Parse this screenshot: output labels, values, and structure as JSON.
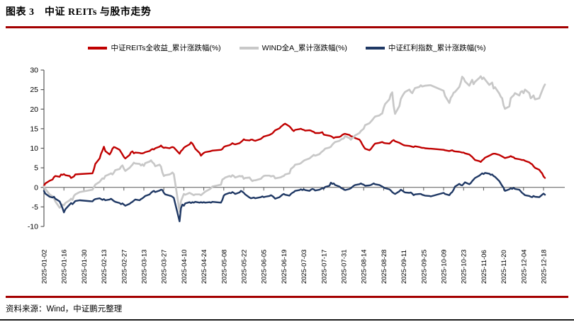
{
  "page": {
    "title": "图表 3　中证 REITs 与股市走势",
    "source_note": "资料来源：Wind，中证鹏元整理",
    "accent_color": "#A40000",
    "axis_color": "#595959"
  },
  "chart_data": {
    "type": "line",
    "title": "中证 REITs 与股市走势",
    "ylabel": "累计涨跌幅(%)",
    "ylim": [
      -10,
      30
    ],
    "yticks": [
      30,
      25,
      20,
      15,
      10,
      5,
      0,
      -5,
      -10
    ],
    "grid": false,
    "legend_position": "top",
    "xtick_labels": [
      "2025-01-02",
      "2025-01-16",
      "2025-01-30",
      "2025-02-13",
      "2025-02-27",
      "2025-03-13",
      "2025-03-27",
      "2025-04-10",
      "2025-04-24",
      "2025-05-08",
      "2025-05-22",
      "2025-06-05",
      "2025-06-19",
      "2025-07-03",
      "2025-07-17",
      "2025-07-31",
      "2025-08-14",
      "2025-08-28",
      "2025-09-11",
      "2025-09-25",
      "2025-10-09",
      "2025-10-23",
      "2025-11-06",
      "2025-11-20",
      "2025-12-04",
      "2025-12-18"
    ],
    "x": [
      "2025-01-02",
      "2025-01-03",
      "2025-01-06",
      "2025-01-08",
      "2025-01-09",
      "2025-01-10",
      "2025-01-13",
      "2025-01-14",
      "2025-01-15",
      "2025-01-16",
      "2025-01-17",
      "2025-01-20",
      "2025-01-21",
      "2025-01-22",
      "2025-01-23",
      "2025-01-24",
      "2025-01-27",
      "2025-02-05",
      "2025-02-06",
      "2025-02-07",
      "2025-02-10",
      "2025-02-11",
      "2025-02-12",
      "2025-02-13",
      "2025-02-14",
      "2025-02-17",
      "2025-02-18",
      "2025-02-19",
      "2025-02-20",
      "2025-02-21",
      "2025-02-24",
      "2025-02-25",
      "2025-02-26",
      "2025-02-27",
      "2025-02-28",
      "2025-03-03",
      "2025-03-04",
      "2025-03-05",
      "2025-03-06",
      "2025-03-07",
      "2025-03-10",
      "2025-03-11",
      "2025-03-12",
      "2025-03-13",
      "2025-03-14",
      "2025-03-17",
      "2025-03-18",
      "2025-03-19",
      "2025-03-20",
      "2025-03-21",
      "2025-03-24",
      "2025-03-25",
      "2025-03-26",
      "2025-03-27",
      "2025-03-28",
      "2025-03-31",
      "2025-04-01",
      "2025-04-02",
      "2025-04-03",
      "2025-04-07",
      "2025-04-08",
      "2025-04-09",
      "2025-04-10",
      "2025-04-11",
      "2025-04-14",
      "2025-04-15",
      "2025-04-16",
      "2025-04-17",
      "2025-04-18",
      "2025-04-21",
      "2025-04-22",
      "2025-04-23",
      "2025-04-24",
      "2025-04-25",
      "2025-04-28",
      "2025-04-29",
      "2025-04-30",
      "2025-05-06",
      "2025-05-07",
      "2025-05-08",
      "2025-05-09",
      "2025-05-12",
      "2025-05-13",
      "2025-05-14",
      "2025-05-15",
      "2025-05-16",
      "2025-05-19",
      "2025-05-20",
      "2025-05-21",
      "2025-05-22",
      "2025-05-23",
      "2025-05-26",
      "2025-05-27",
      "2025-05-28",
      "2025-05-29",
      "2025-05-30",
      "2025-06-03",
      "2025-06-04",
      "2025-06-05",
      "2025-06-06",
      "2025-06-09",
      "2025-06-10",
      "2025-06-11",
      "2025-06-12",
      "2025-06-13",
      "2025-06-16",
      "2025-06-17",
      "2025-06-18",
      "2025-06-19",
      "2025-06-20",
      "2025-06-23",
      "2025-06-24",
      "2025-06-25",
      "2025-06-26",
      "2025-06-27",
      "2025-06-30",
      "2025-07-01",
      "2025-07-02",
      "2025-07-03",
      "2025-07-04",
      "2025-07-07",
      "2025-07-08",
      "2025-07-09",
      "2025-07-10",
      "2025-07-11",
      "2025-07-14",
      "2025-07-15",
      "2025-07-16",
      "2025-07-17",
      "2025-07-18",
      "2025-07-21",
      "2025-07-22",
      "2025-07-23",
      "2025-07-24",
      "2025-07-25",
      "2025-07-28",
      "2025-07-29",
      "2025-07-30",
      "2025-07-31",
      "2025-08-01",
      "2025-08-04",
      "2025-08-05",
      "2025-08-06",
      "2025-08-07",
      "2025-08-08",
      "2025-08-11",
      "2025-08-12",
      "2025-08-13",
      "2025-08-14",
      "2025-08-15",
      "2025-08-18",
      "2025-08-19",
      "2025-08-20",
      "2025-08-21",
      "2025-08-22",
      "2025-08-25",
      "2025-08-26",
      "2025-08-27",
      "2025-08-28",
      "2025-08-29",
      "2025-09-01",
      "2025-09-02",
      "2025-09-03",
      "2025-09-04",
      "2025-09-05",
      "2025-09-08",
      "2025-09-09",
      "2025-09-10",
      "2025-09-11",
      "2025-09-12",
      "2025-09-15",
      "2025-09-16",
      "2025-09-17",
      "2025-09-18",
      "2025-09-19",
      "2025-09-22",
      "2025-09-23",
      "2025-09-24",
      "2025-09-25",
      "2025-09-26",
      "2025-09-29",
      "2025-09-30",
      "2025-10-09",
      "2025-10-10",
      "2025-10-13",
      "2025-10-14",
      "2025-10-15",
      "2025-10-16",
      "2025-10-17",
      "2025-10-20",
      "2025-10-21",
      "2025-10-22",
      "2025-10-23",
      "2025-10-24",
      "2025-10-27",
      "2025-10-28",
      "2025-10-29",
      "2025-10-30",
      "2025-10-31",
      "2025-11-03",
      "2025-11-04",
      "2025-11-05",
      "2025-11-06",
      "2025-11-07",
      "2025-11-10",
      "2025-11-11",
      "2025-11-12",
      "2025-11-13",
      "2025-11-14",
      "2025-11-17",
      "2025-11-18",
      "2025-11-19",
      "2025-11-20",
      "2025-11-21",
      "2025-11-24",
      "2025-11-25",
      "2025-11-26",
      "2025-11-27",
      "2025-11-28",
      "2025-12-01",
      "2025-12-02",
      "2025-12-03",
      "2025-12-04",
      "2025-12-05",
      "2025-12-08",
      "2025-12-09",
      "2025-12-10",
      "2025-12-11",
      "2025-12-12",
      "2025-12-15",
      "2025-12-16",
      "2025-12-17",
      "2025-12-18",
      "2025-12-19"
    ],
    "series": [
      {
        "name": "中证REITs全收益_累计涨跌幅(%)",
        "color": "#C00000",
        "width": 2.4,
        "values": [
          0.4,
          1.0,
          1.7,
          2.0,
          2.6,
          2.9,
          2.7,
          3.3,
          3.2,
          3.4,
          3.1,
          2.9,
          2.4,
          2.6,
          2.8,
          3.3,
          3.4,
          3.6,
          4.6,
          6.0,
          7.4,
          8.6,
          9.4,
          10.4,
          9.3,
          8.4,
          9.0,
          9.9,
          10.3,
          10.2,
          9.6,
          9.0,
          8.4,
          7.8,
          7.4,
          8.3,
          9.0,
          9.2,
          8.7,
          8.9,
          8.8,
          8.7,
          8.7,
          8.8,
          9.0,
          9.3,
          9.6,
          9.8,
          9.7,
          10.0,
          10.4,
          10.7,
          10.3,
          10.1,
          10.2,
          10.0,
          10.2,
          10.3,
          10.2,
          8.6,
          9.3,
          9.6,
          10.1,
          10.4,
          11.0,
          11.5,
          11.2,
          10.6,
          9.9,
          8.8,
          8.1,
          8.5,
          8.8,
          9.0,
          9.2,
          9.3,
          9.4,
          9.6,
          9.8,
          10.3,
          10.5,
          10.8,
          11.0,
          11.3,
          11.1,
          11.0,
          11.3,
          11.6,
          11.9,
          12.3,
          12.1,
          12.0,
          12.2,
          12.2,
          12.0,
          11.9,
          12.4,
          12.7,
          13.0,
          13.1,
          13.4,
          13.6,
          13.8,
          14.2,
          14.6,
          15.1,
          15.5,
          15.8,
          16.1,
          16.3,
          15.6,
          15.2,
          14.7,
          14.4,
          14.7,
          14.9,
          15.0,
          14.8,
          14.7,
          14.5,
          14.6,
          14.5,
          14.3,
          14.2,
          13.9,
          13.9,
          14.0,
          14.1,
          13.5,
          13.4,
          13.2,
          13.1,
          12.9,
          12.6,
          12.8,
          12.9,
          13.1,
          13.4,
          13.6,
          13.7,
          13.4,
          13.1,
          13.0,
          12.9,
          12.6,
          12.2,
          11.7,
          11.0,
          10.4,
          9.9,
          9.5,
          9.8,
          10.3,
          10.8,
          11.2,
          11.4,
          11.5,
          11.6,
          11.4,
          11.3,
          11.2,
          11.5,
          11.9,
          12.1,
          11.8,
          11.4,
          11.2,
          11.0,
          10.8,
          10.7,
          10.6,
          10.5,
          10.4,
          10.3,
          10.5,
          10.3,
          10.2,
          10.1,
          10.1,
          10.0,
          9.9,
          9.9,
          9.6,
          9.5,
          9.3,
          9.4,
          9.5,
          9.3,
          9.2,
          9.1,
          9.0,
          8.9,
          8.9,
          8.7,
          8.4,
          8.1,
          7.8,
          7.4,
          7.0,
          6.7,
          6.5,
          6.9,
          7.2,
          7.6,
          8.1,
          8.3,
          8.5,
          8.6,
          8.6,
          8.3,
          8.1,
          7.9,
          7.7,
          7.5,
          7.8,
          8.0,
          7.8,
          7.7,
          7.4,
          7.2,
          7.1,
          7.0,
          7.0,
          6.8,
          6.4,
          6.1,
          5.9,
          5.4,
          5.0,
          4.5,
          4.0,
          3.6,
          2.8,
          2.4
        ]
      },
      {
        "name": "WIND全A_累计涨跌幅(%)",
        "color": "#C8C8C8",
        "width": 2.7,
        "values": [
          0.2,
          -0.4,
          -1.8,
          -2.3,
          -2.8,
          -3.6,
          -5.2,
          -4.9,
          -4.4,
          -4.6,
          -4.0,
          -3.3,
          -2.9,
          -3.2,
          -2.2,
          -1.8,
          -1.2,
          -0.6,
          0.1,
          0.7,
          1.4,
          1.9,
          2.3,
          2.2,
          2.9,
          3.4,
          3.6,
          3.3,
          3.8,
          4.4,
          4.7,
          5.3,
          5.6,
          4.8,
          4.2,
          5.0,
          5.4,
          5.8,
          6.3,
          6.1,
          6.0,
          5.6,
          5.9,
          5.5,
          6.2,
          6.6,
          6.9,
          6.4,
          6.1,
          5.4,
          5.8,
          5.3,
          3.8,
          2.9,
          3.1,
          3.3,
          3.5,
          3.8,
          3.4,
          -6.2,
          -3.5,
          -2.6,
          -1.7,
          -1.9,
          -1.4,
          -1.6,
          -1.8,
          -2.0,
          -1.8,
          -1.8,
          -2.0,
          -1.7,
          -1.4,
          -1.1,
          -0.5,
          -0.2,
          0.2,
          0.7,
          2.0,
          2.2,
          2.5,
          2.9,
          2.7,
          3.1,
          2.9,
          2.5,
          2.9,
          2.8,
          2.9,
          2.2,
          2.4,
          2.5,
          2.0,
          1.6,
          1.8,
          1.8,
          2.2,
          2.6,
          2.9,
          3.0,
          3.0,
          2.8,
          2.9,
          2.9,
          2.3,
          2.5,
          2.6,
          2.8,
          2.9,
          3.3,
          3.6,
          4.7,
          5.0,
          5.3,
          5.8,
          6.0,
          6.2,
          6.5,
          6.8,
          7.0,
          7.4,
          7.7,
          8.0,
          8.3,
          8.1,
          8.5,
          8.9,
          9.2,
          9.5,
          9.9,
          10.2,
          10.4,
          10.9,
          11.3,
          11.6,
          11.9,
          12.2,
          12.4,
          12.5,
          13.1,
          12.6,
          12.2,
          12.6,
          12.9,
          13.3,
          13.9,
          14.4,
          14.7,
          15.0,
          15.9,
          16.4,
          16.8,
          17.2,
          17.7,
          18.1,
          18.4,
          18.7,
          18.9,
          20.3,
          21.3,
          22.5,
          23.8,
          24.3,
          20.8,
          18.8,
          20.8,
          22.6,
          23.3,
          23.9,
          24.4,
          25.0,
          24.4,
          24.1,
          24.8,
          25.4,
          25.7,
          26.1,
          25.8,
          25.9,
          26.0,
          26.1,
          26.1,
          24.7,
          23.4,
          21.6,
          22.9,
          23.4,
          24.2,
          24.4,
          25.7,
          26.8,
          28.3,
          27.9,
          27.1,
          26.0,
          26.8,
          27.5,
          26.4,
          27.0,
          28.0,
          28.4,
          27.7,
          28.1,
          27.6,
          26.2,
          26.5,
          26.8,
          25.3,
          25.6,
          24.0,
          23.2,
          22.8,
          21.0,
          20.1,
          20.7,
          22.8,
          23.2,
          23.5,
          24.1,
          23.5,
          24.4,
          24.6,
          24.1,
          25.0,
          24.1,
          22.8,
          23.1,
          23.5,
          22.5,
          22.8,
          23.8,
          24.7,
          25.6,
          26.3
        ]
      },
      {
        "name": "中证红利指数_累计涨跌幅(%)",
        "color": "#1F3864",
        "width": 2.4,
        "values": [
          -0.9,
          -1.6,
          -2.4,
          -2.6,
          -2.4,
          -2.9,
          -3.6,
          -4.4,
          -5.3,
          -6.4,
          -5.6,
          -4.4,
          -4.0,
          -4.3,
          -3.9,
          -3.5,
          -3.3,
          -3.6,
          -3.2,
          -3.0,
          -2.8,
          -3.0,
          -3.2,
          -3.0,
          -3.3,
          -3.1,
          -2.9,
          -3.2,
          -3.5,
          -3.7,
          -4.0,
          -4.3,
          -4.1,
          -4.4,
          -4.7,
          -4.2,
          -3.9,
          -3.7,
          -3.4,
          -3.1,
          -3.3,
          -3.0,
          -2.8,
          -2.5,
          -2.2,
          -1.8,
          -1.4,
          -1.1,
          -0.9,
          -1.2,
          -0.8,
          -0.6,
          -0.7,
          -1.4,
          -1.8,
          -2.1,
          -2.2,
          -2.4,
          -2.7,
          -8.7,
          -5.3,
          -4.4,
          -4.7,
          -4.1,
          -3.8,
          -4.0,
          -3.8,
          -3.9,
          -3.7,
          -3.9,
          -3.8,
          -3.9,
          -3.8,
          -3.9,
          -3.8,
          -3.9,
          -3.7,
          -3.9,
          -3.2,
          -2.1,
          -1.8,
          -1.4,
          -1.5,
          -1.2,
          -1.4,
          -1.7,
          -1.3,
          -0.9,
          -1.1,
          -1.4,
          -1.8,
          -2.6,
          -2.8,
          -2.7,
          -2.6,
          -2.8,
          -2.5,
          -2.3,
          -2.5,
          -2.4,
          -2.2,
          -2.0,
          -2.2,
          -2.5,
          -2.9,
          -2.5,
          -2.2,
          -1.9,
          -1.7,
          -1.9,
          -2.1,
          -1.7,
          -1.4,
          -1.2,
          -0.9,
          -0.7,
          -0.5,
          -0.7,
          -0.5,
          -0.7,
          -0.9,
          -0.6,
          -0.4,
          -0.5,
          -0.8,
          -0.6,
          -0.4,
          -0.2,
          -0.3,
          0.1,
          0.4,
          1.2,
          0.9,
          1.0,
          0.6,
          0.2,
          -0.1,
          -0.3,
          -0.5,
          -0.7,
          -0.4,
          -0.2,
          0.1,
          0.4,
          0.6,
          0.8,
          1.0,
          0.8,
          0.7,
          0.4,
          0.5,
          0.6,
          0.8,
          1.0,
          0.8,
          0.6,
          0.4,
          0.2,
          0.0,
          -0.2,
          -0.5,
          -0.8,
          -1.2,
          -1.5,
          -1.7,
          -1.0,
          -0.6,
          -0.8,
          -1.1,
          -1.3,
          -1.4,
          -1.3,
          -1.6,
          -2.0,
          -1.8,
          -1.7,
          -1.7,
          -1.9,
          -2.0,
          -2.1,
          -2.2,
          -2.3,
          -1.4,
          -1.7,
          -2.0,
          -1.5,
          -1.2,
          -0.6,
          0.2,
          0.9,
          0.6,
          0.5,
          0.9,
          1.3,
          0.8,
          1.1,
          1.6,
          2.0,
          2.4,
          3.0,
          3.3,
          3.6,
          3.4,
          3.7,
          3.5,
          3.2,
          3.3,
          2.9,
          2.7,
          1.6,
          1.0,
          0.4,
          -0.1,
          -0.9,
          -0.5,
          -0.2,
          -0.4,
          -0.1,
          -0.4,
          -0.6,
          -1.0,
          -1.4,
          -1.7,
          -2.0,
          -2.2,
          -2.4,
          -2.5,
          -2.2,
          -2.4,
          -2.5,
          -2.2,
          -1.9,
          -1.6,
          -1.9
        ]
      }
    ]
  }
}
